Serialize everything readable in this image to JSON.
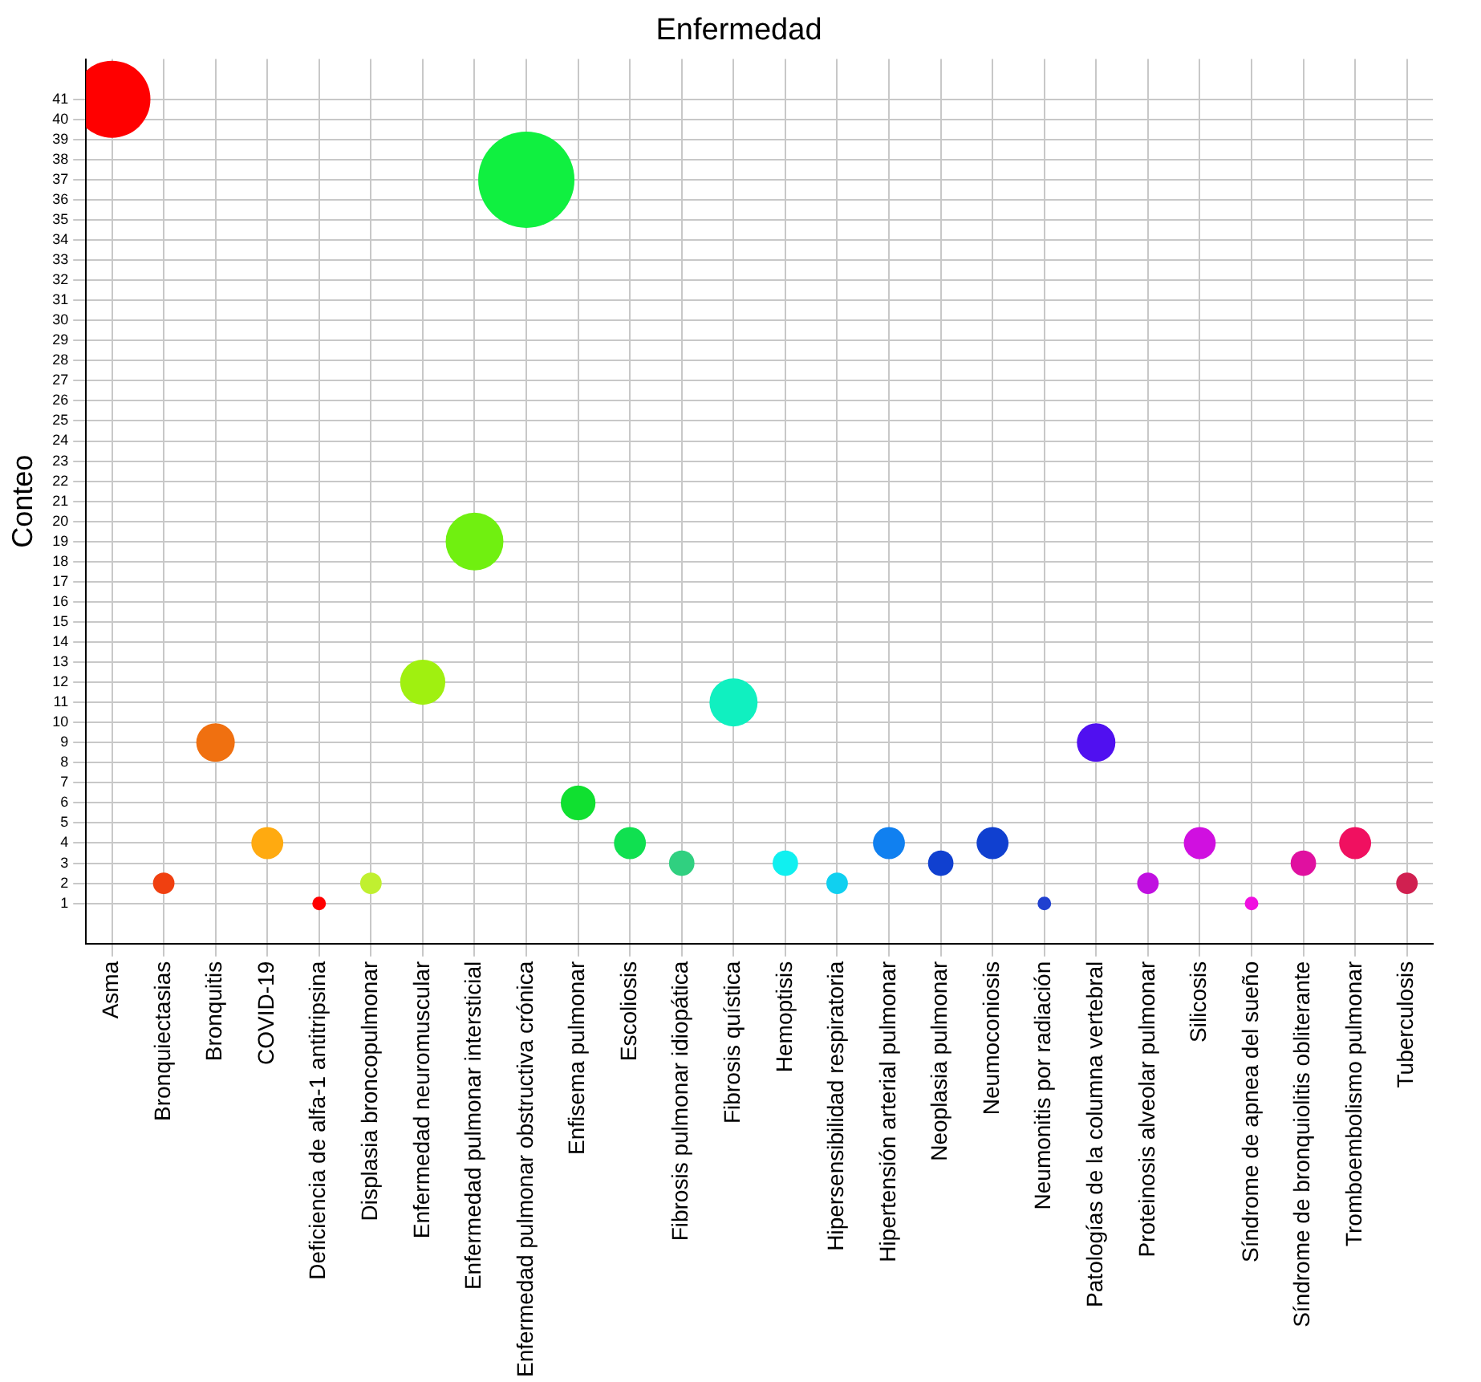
{
  "chart_data": {
    "type": "bubble",
    "xlabel": "Enfermedad",
    "ylabel": "Conteo",
    "categories": [
      "Asma",
      "Bronquiectasias",
      "Bronquitis",
      "COVID-19",
      "Deficiencia de alfa-1 antitripsina",
      "Displasia broncopulmonar",
      "Enfermedad neuromuscular",
      "Enfermedad pulmonar intersticial",
      "Enfermedad pulmonar obstructiva crónica",
      "Enfisema pulmonar",
      "Escoliosis",
      "Fibrosis pulmonar idiopática",
      "Fibrosis quística",
      "Hemoptisis",
      "Hipersensibilidad respiratoria",
      "Hipertensión arterial pulmonar",
      "Neoplasia pulmonar",
      "Neumoconiosis",
      "Neumonitis por radiación",
      "Patologías de la columna vertebral",
      "Proteinosis alveolar pulmonar",
      "Silicosis",
      "Síndrome de apnea del sueño",
      "Síndrome de bronquiolitis obliterante",
      "Tromboembolismo pulmonar",
      "Tuberculosis"
    ],
    "values": [
      41,
      2,
      9,
      4,
      1,
      2,
      12,
      19,
      37,
      6,
      4,
      3,
      11,
      3,
      2,
      4,
      3,
      4,
      1,
      9,
      2,
      4,
      1,
      3,
      4,
      2
    ],
    "sizes": [
      0.64,
      0.05,
      0.16,
      0.11,
      0.02,
      0.05,
      0.22,
      0.36,
      1,
      0.13,
      0.11,
      0.07,
      0.25,
      0.07,
      0.05,
      0.11,
      0.07,
      0.11,
      0.02,
      0.16,
      0.05,
      0.11,
      0.02,
      0.07,
      0.11,
      0.05
    ],
    "colors": [
      "#ff0000",
      "#f04010",
      "#f07010",
      "#ffaa10",
      "#ff0000",
      "#c0f030",
      "#a0f010",
      "#70f010",
      "#10f040",
      "#10e030",
      "#10e050",
      "#30d080",
      "#10f0c0",
      "#10f0f0",
      "#10d0f0",
      "#1080f0",
      "#1040d0",
      "#1040d0",
      "#2040d0",
      "#5010f0",
      "#c010e0",
      "#d010e0",
      "#f010e0",
      "#e010a0",
      "#f01060",
      "#d02050"
    ],
    "ylim": [
      -1,
      43
    ],
    "yticks": [
      1,
      2,
      3,
      4,
      5,
      6,
      7,
      8,
      9,
      10,
      11,
      12,
      13,
      14,
      15,
      16,
      17,
      18,
      19,
      20,
      21,
      22,
      23,
      24,
      25,
      26,
      27,
      28,
      29,
      30,
      31,
      32,
      33,
      34,
      35,
      36,
      37,
      38,
      39,
      40,
      41
    ],
    "grid": true,
    "legend": false
  }
}
